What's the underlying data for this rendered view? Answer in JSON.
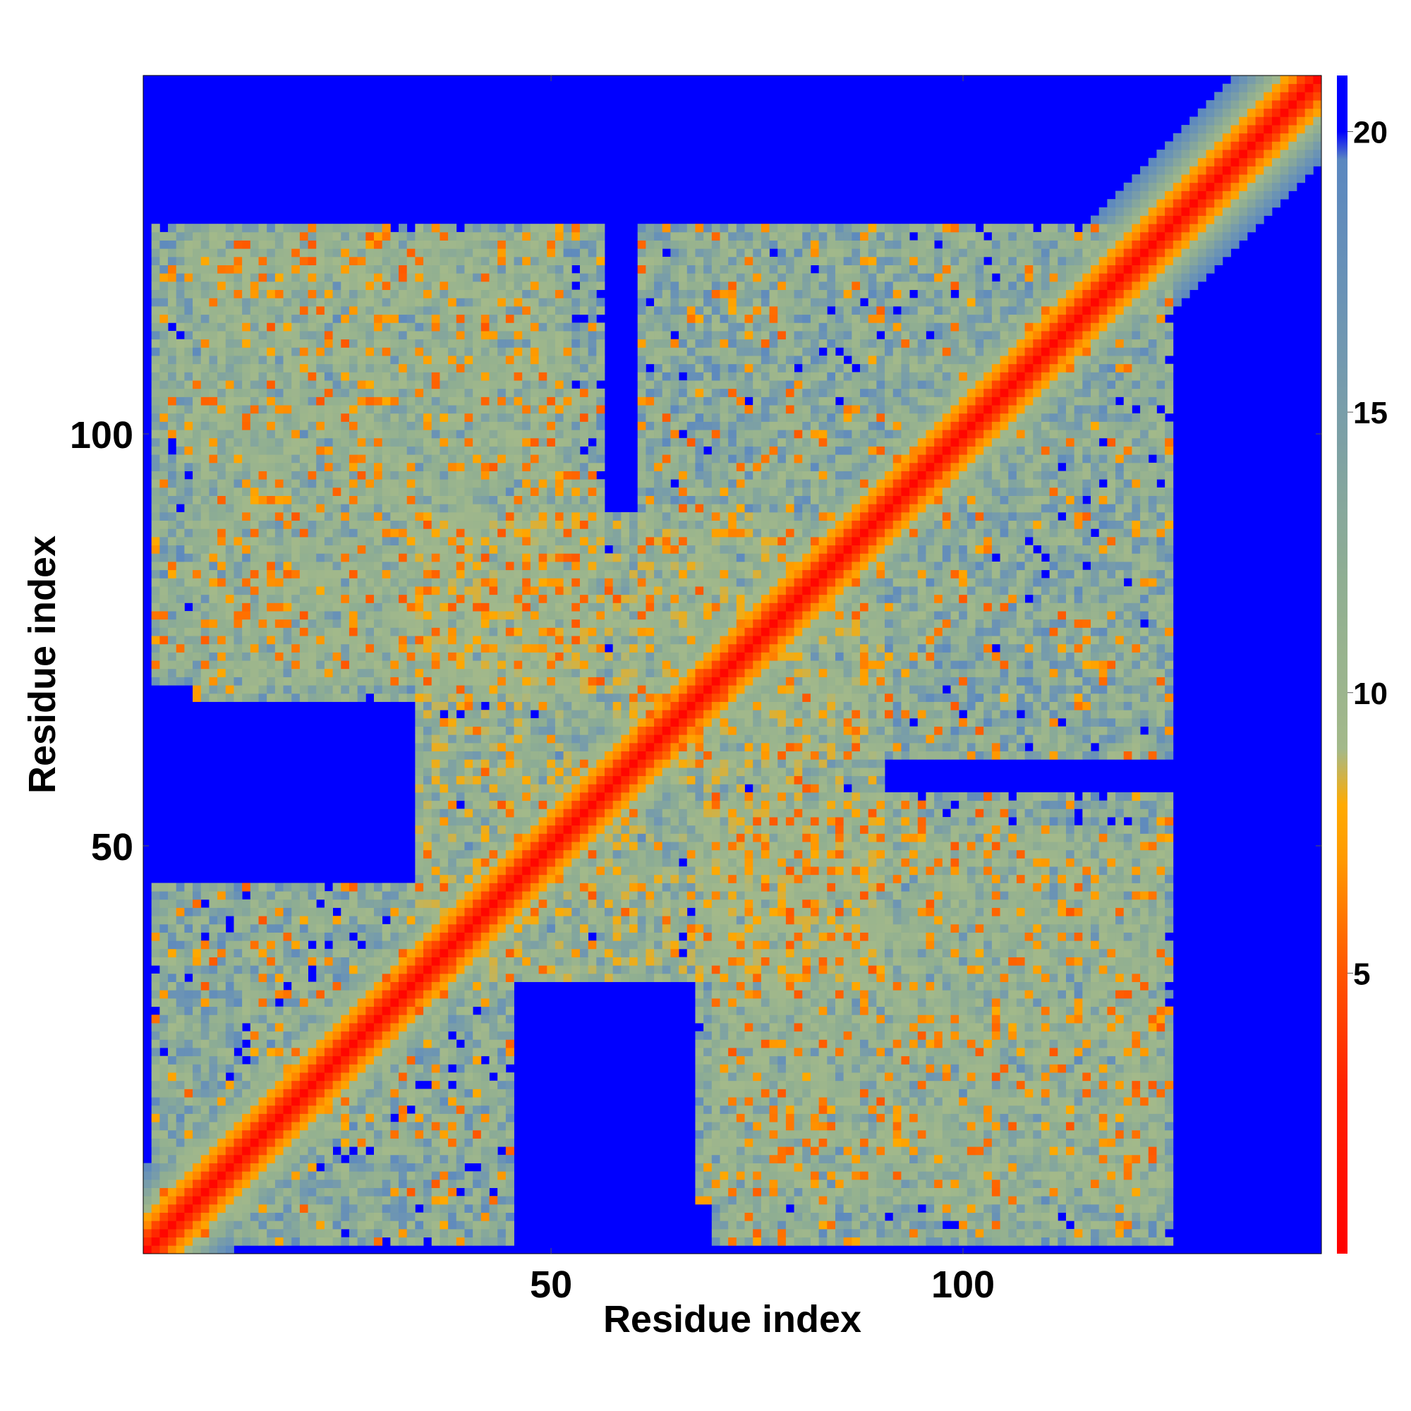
{
  "chart_data": {
    "type": "heatmap",
    "title": "",
    "xlabel": "Residue index",
    "ylabel": "Residue index",
    "n_residues": 143,
    "xlim": [
      1,
      143
    ],
    "ylim": [
      1,
      143
    ],
    "x_ticks": [
      50,
      100
    ],
    "y_ticks": [
      50,
      100
    ],
    "x_tick_labels": [
      "50",
      "100"
    ],
    "y_tick_labels": [
      "50",
      "100"
    ],
    "colorbar": {
      "range": [
        0,
        21
      ],
      "ticks": [
        5,
        10,
        15,
        20
      ],
      "tick_labels": [
        "5",
        "10",
        "15",
        "20"
      ],
      "stops": [
        {
          "value": 0,
          "color": "#ff0000"
        },
        {
          "value": 3,
          "color": "#ff2200"
        },
        {
          "value": 5,
          "color": "#ff5500"
        },
        {
          "value": 7,
          "color": "#ff9900"
        },
        {
          "value": 8,
          "color": "#ffaa00"
        },
        {
          "value": 9,
          "color": "#a3b98a"
        },
        {
          "value": 12,
          "color": "#8fae92"
        },
        {
          "value": 16,
          "color": "#7198b0"
        },
        {
          "value": 19.5,
          "color": "#5a87c0"
        },
        {
          "value": 20,
          "color": "#0000ff"
        },
        {
          "value": 21,
          "color": "#0000ff"
        }
      ]
    },
    "cutoff_color": "#0000ff",
    "description_regions": [
      {
        "x": [
          8,
          45
        ],
        "y": [
          2,
          45
        ],
        "min_value": 9,
        "max_value": 19
      },
      {
        "x": [
          7,
          52
        ],
        "y": [
          68,
          124
        ],
        "min_value": 9,
        "max_value": 19
      },
      {
        "x": [
          61,
          125
        ],
        "y": [
          61,
          124
        ],
        "min_value": 9,
        "max_value": 19
      },
      {
        "x": [
          70,
          125
        ],
        "y": [
          2,
          56
        ],
        "min_value": 9,
        "max_value": 19
      },
      {
        "x": [
          34,
          80
        ],
        "y": [
          42,
          90
        ],
        "min_value": 8,
        "max_value": 17
      }
    ]
  }
}
